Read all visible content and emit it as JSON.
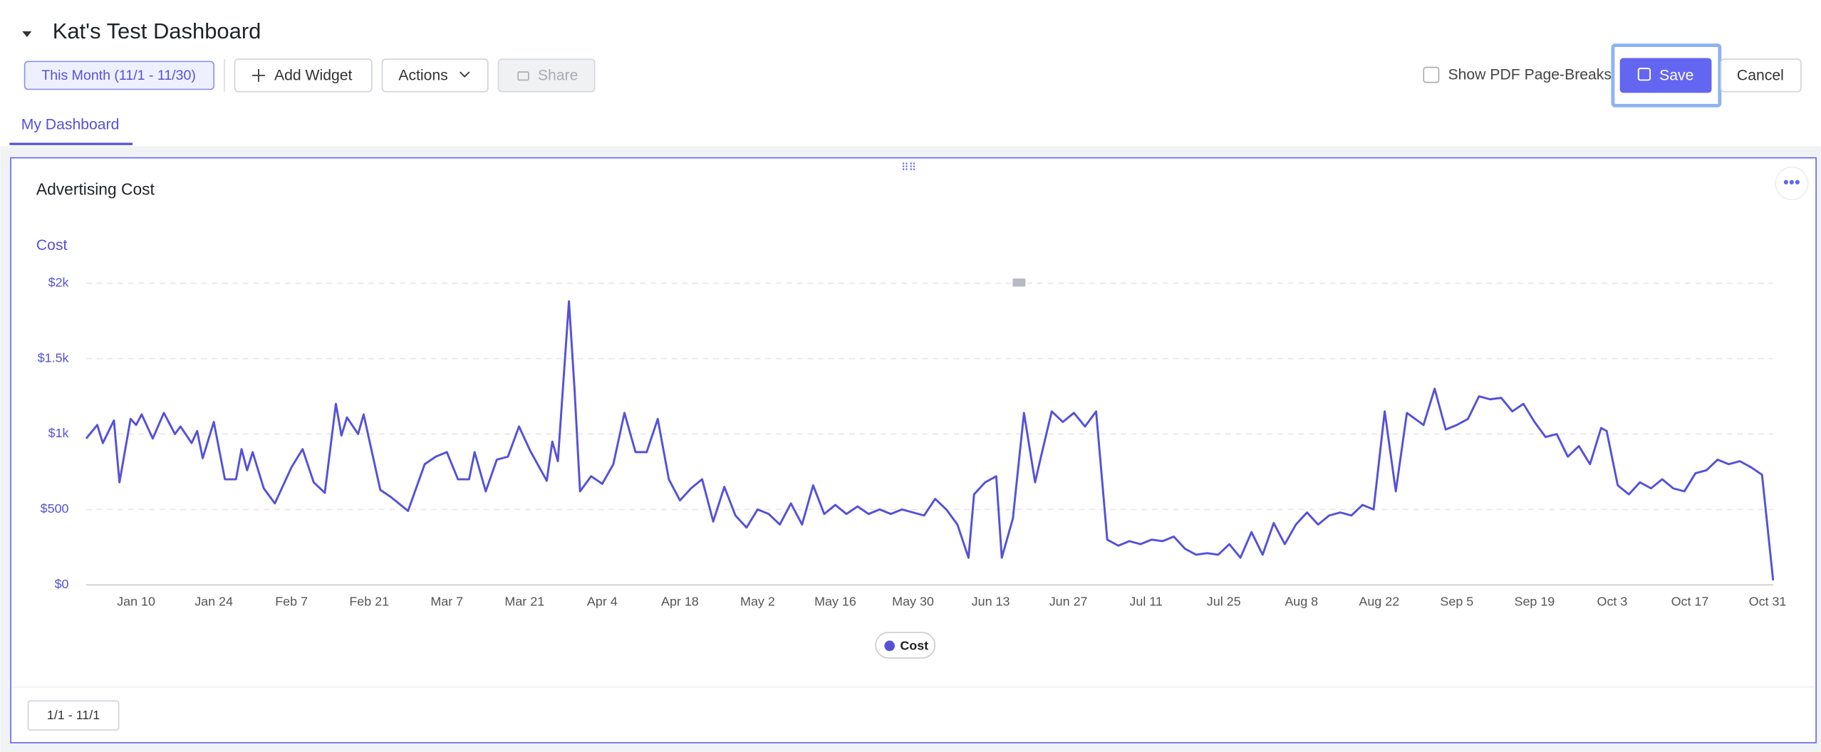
{
  "header": {
    "title": "Kat's Test Dashboard",
    "date_range": "This Month (11/1 - 11/30)",
    "add_widget": "Add Widget",
    "actions": "Actions",
    "share": "Share",
    "pdf_toggle": "Show PDF Page-Breaks",
    "save": "Save",
    "cancel": "Cancel"
  },
  "tabs": [
    "My Dashboard"
  ],
  "widget": {
    "title": "Advertising Cost",
    "footer_range": "1/1 - 11/1"
  },
  "chart_data": {
    "type": "line",
    "y_label": "Cost",
    "grid": true,
    "legend": "bottom",
    "xlim": [
      "Jan 1",
      "Nov 1"
    ],
    "xticks": [
      "Jan 10",
      "Jan 24",
      "Feb 7",
      "Feb 21",
      "Mar 7",
      "Mar 21",
      "Apr 4",
      "Apr 18",
      "May 2",
      "May 16",
      "May 30",
      "Jun 13",
      "Jun 27",
      "Jul 11",
      "Jul 25",
      "Aug 8",
      "Aug 22",
      "Sep 5",
      "Sep 19",
      "Oct 3",
      "Oct 17",
      "Oct 31"
    ],
    "ylim": [
      0,
      2000
    ],
    "yticks": [
      {
        "value": 0,
        "label": "$0"
      },
      {
        "value": 500,
        "label": "$500"
      },
      {
        "value": 1000,
        "label": "$1k"
      },
      {
        "value": 1500,
        "label": "$1.5k"
      },
      {
        "value": 2000,
        "label": "$2k"
      }
    ],
    "x": [
      "Jan 1",
      "Jan 3",
      "Jan 4",
      "Jan 6",
      "Jan 7",
      "Jan 9",
      "Jan 10",
      "Jan 11",
      "Jan 13",
      "Jan 15",
      "Jan 17",
      "Jan 18",
      "Jan 20",
      "Jan 21",
      "Jan 22",
      "Jan 24",
      "Jan 26",
      "Jan 28",
      "Jan 29",
      "Jan 30",
      "Jan 31",
      "Feb 2",
      "Feb 4",
      "Feb 7",
      "Feb 9",
      "Feb 11",
      "Feb 13",
      "Feb 15",
      "Feb 16",
      "Feb 17",
      "Feb 19",
      "Feb 20",
      "Feb 23",
      "Feb 25",
      "Feb 28",
      "Mar 3",
      "Mar 5",
      "Mar 7",
      "Mar 9",
      "Mar 11",
      "Mar 12",
      "Mar 14",
      "Mar 16",
      "Mar 18",
      "Mar 20",
      "Mar 22",
      "Mar 25",
      "Mar 26",
      "Mar 27",
      "Mar 29",
      "Mar 30",
      "Mar 31",
      "Apr 2",
      "Apr 4",
      "Apr 6",
      "Apr 8",
      "Apr 10",
      "Apr 12",
      "Apr 14",
      "Apr 16",
      "Apr 18",
      "Apr 20",
      "Apr 22",
      "Apr 24",
      "Apr 26",
      "Apr 28",
      "Apr 30",
      "May 2",
      "May 4",
      "May 6",
      "May 8",
      "May 10",
      "May 12",
      "May 14",
      "May 16",
      "May 18",
      "May 20",
      "May 22",
      "May 24",
      "May 26",
      "May 28",
      "May 30",
      "Jun 1",
      "Jun 3",
      "Jun 5",
      "Jun 7",
      "Jun 9",
      "Jun 10",
      "Jun 12",
      "Jun 14",
      "Jun 15",
      "Jun 17",
      "Jun 19",
      "Jun 21",
      "Jun 22",
      "Jun 24",
      "Jun 26",
      "Jun 28",
      "Jun 30",
      "Jul 2",
      "Jul 4",
      "Jul 6",
      "Jul 8",
      "Jul 10",
      "Jul 12",
      "Jul 14",
      "Jul 16",
      "Jul 18",
      "Jul 20",
      "Jul 22",
      "Jul 24",
      "Jul 26",
      "Jul 28",
      "Jul 30",
      "Aug 1",
      "Aug 3",
      "Aug 5",
      "Aug 7",
      "Aug 9",
      "Aug 11",
      "Aug 13",
      "Aug 15",
      "Aug 17",
      "Aug 19",
      "Aug 21",
      "Aug 23",
      "Aug 25",
      "Aug 27",
      "Aug 30",
      "Sep 1",
      "Sep 3",
      "Sep 5",
      "Sep 7",
      "Sep 9",
      "Sep 11",
      "Sep 13",
      "Sep 15",
      "Sep 17",
      "Sep 19",
      "Sep 21",
      "Sep 23",
      "Sep 25",
      "Sep 27",
      "Sep 29",
      "Oct 1",
      "Oct 2",
      "Oct 4",
      "Oct 6",
      "Oct 8",
      "Oct 10",
      "Oct 12",
      "Oct 14",
      "Oct 16",
      "Oct 18",
      "Oct 20",
      "Oct 22",
      "Oct 24",
      "Oct 26",
      "Oct 28",
      "Oct 30",
      "Nov 1"
    ],
    "series": [
      {
        "name": "Cost",
        "color": "#5551d8",
        "values": [
          970,
          1060,
          940,
          1090,
          680,
          1100,
          1060,
          1130,
          970,
          1140,
          1000,
          1050,
          940,
          1020,
          840,
          1080,
          700,
          700,
          900,
          760,
          880,
          640,
          540,
          780,
          900,
          680,
          610,
          1200,
          990,
          1110,
          1000,
          1130,
          630,
          580,
          490,
          800,
          850,
          880,
          700,
          700,
          880,
          620,
          830,
          850,
          1050,
          890,
          690,
          950,
          820,
          1880,
          1300,
          620,
          720,
          670,
          800,
          1140,
          880,
          880,
          1100,
          700,
          560,
          640,
          700,
          420,
          650,
          460,
          380,
          500,
          470,
          400,
          540,
          400,
          660,
          470,
          530,
          470,
          520,
          470,
          500,
          470,
          500,
          480,
          460,
          570,
          500,
          400,
          180,
          600,
          680,
          720,
          180,
          440,
          1140,
          680,
          840,
          1150,
          1080,
          1140,
          1050,
          1150,
          300,
          260,
          290,
          270,
          300,
          290,
          320,
          240,
          200,
          210,
          200,
          270,
          180,
          350,
          200,
          410,
          270,
          400,
          480,
          400,
          460,
          480,
          460,
          530,
          500,
          1150,
          620,
          1140,
          1060,
          1300,
          1030,
          1060,
          1100,
          1250,
          1230,
          1240,
          1150,
          1200,
          1080,
          980,
          1000,
          850,
          920,
          800,
          1040,
          1020,
          660,
          600,
          680,
          640,
          700,
          640,
          620,
          740,
          760,
          830,
          800,
          820,
          780,
          730,
          30
        ]
      }
    ]
  }
}
